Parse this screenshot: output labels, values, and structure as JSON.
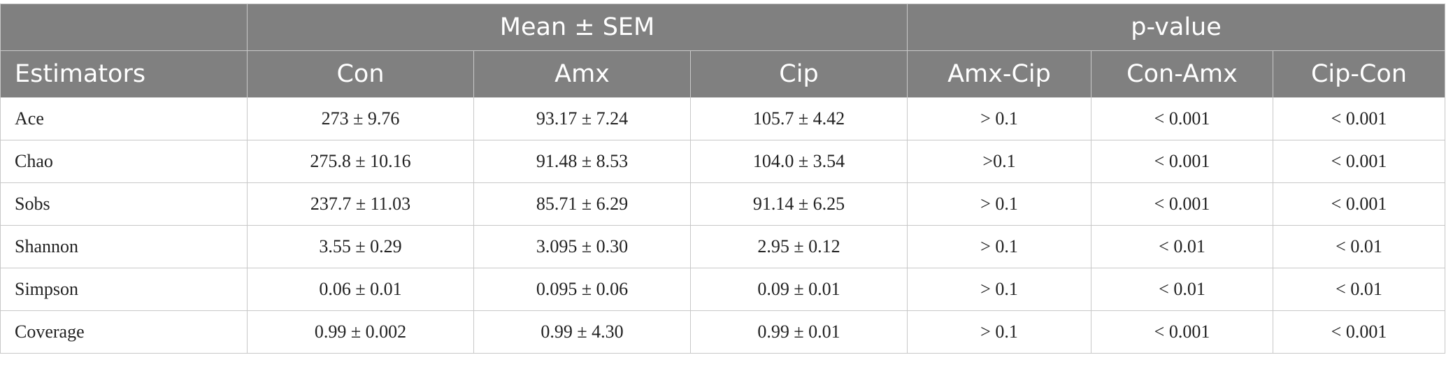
{
  "table": {
    "header_groups": [
      "Mean ± SEM",
      "p-value"
    ],
    "columns": [
      "Estimators",
      "Con",
      "Amx",
      "Cip",
      "Amx-Cip",
      "Con-Amx",
      "Cip-Con"
    ],
    "rows": [
      [
        "Ace",
        "273 ± 9.76",
        "93.17 ± 7.24",
        "105.7 ± 4.42",
        "> 0.1",
        "< 0.001",
        "< 0.001"
      ],
      [
        "Chao",
        "275.8 ± 10.16",
        "91.48 ± 8.53",
        "104.0 ± 3.54",
        ">0.1",
        "< 0.001",
        "< 0.001"
      ],
      [
        "Sobs",
        "237.7 ± 11.03",
        "85.71 ± 6.29",
        "91.14 ± 6.25",
        "> 0.1",
        "< 0.001",
        "< 0.001"
      ],
      [
        "Shannon",
        "3.55 ± 0.29",
        "3.095 ± 0.30",
        "2.95 ± 0.12",
        "> 0.1",
        "< 0.01",
        "< 0.01"
      ],
      [
        "Simpson",
        "0.06 ± 0.01",
        "0.095 ± 0.06",
        "0.09 ± 0.01",
        "> 0.1",
        "< 0.01",
        "< 0.01"
      ],
      [
        "Coverage",
        "0.99 ± 0.002",
        "0.99 ± 4.30",
        "0.99 ± 0.01",
        "> 0.1",
        "< 0.001",
        "< 0.001"
      ]
    ]
  }
}
